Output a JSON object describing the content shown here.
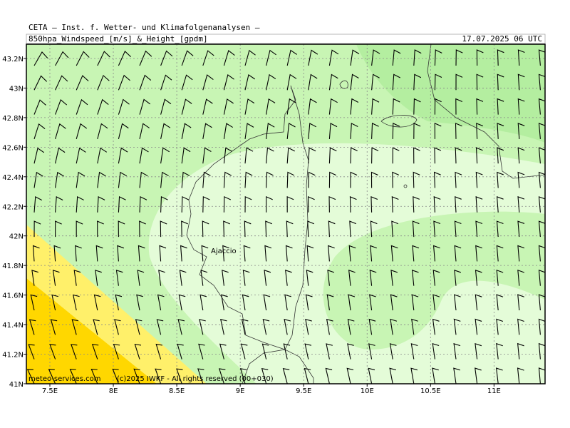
{
  "header": {
    "source": "CETA – Inst. f. Wetter- und Klimafolgenanalysen –",
    "field": "850hpa_Windspeed_[m/s]_&_Height_[gpdm]",
    "valid_time": "17.07.2025 06 UTC"
  },
  "axes": {
    "latitudes": [
      "43.2N",
      "43N",
      "42.8N",
      "42.6N",
      "42.4N",
      "42.2N",
      "42N",
      "41.8N",
      "41.6N",
      "41.4N",
      "41.2N",
      "41N"
    ],
    "longitudes": [
      "7.5E",
      "8E",
      "8.5E",
      "9E",
      "9.5E",
      "10E",
      "10.5E",
      "11E"
    ]
  },
  "places": {
    "city": "Ajaccio"
  },
  "footer": {
    "site": "meteo-services.com",
    "copyright": "(c)2025 IWKF - All rights reserved (00+030)"
  }
}
